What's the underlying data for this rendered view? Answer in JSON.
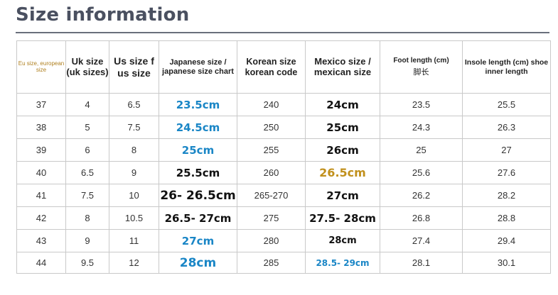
{
  "page": {
    "title": "Size information"
  },
  "table": {
    "headers": {
      "eu": "Eu size, european size",
      "uk": "Uk size (uk sizes)",
      "us": "Us size f us size",
      "jp": "Japanese size / japanese size chart",
      "kr": "Korean size korean code",
      "mx": "Mexico size / mexican size",
      "foot": "Foot length (cm)",
      "foot_cjk": "脚长",
      "insole": "Insole length (cm) shoe inner length"
    },
    "rows": [
      {
        "eu": "37",
        "uk": "4",
        "us": "6.5",
        "jp": "23.5cm",
        "kr": "240",
        "mx": "24cm",
        "foot": "23.5",
        "insole": "25.5"
      },
      {
        "eu": "38",
        "uk": "5",
        "us": "7.5",
        "jp": "24.5cm",
        "kr": "250",
        "mx": "25cm",
        "foot": "24.3",
        "insole": "26.3"
      },
      {
        "eu": "39",
        "uk": "6",
        "us": "8",
        "jp": "25cm",
        "kr": "255",
        "mx": "26cm",
        "foot": "25",
        "insole": "27"
      },
      {
        "eu": "40",
        "uk": "6.5",
        "us": "9",
        "jp": "25.5cm",
        "kr": "260",
        "mx": "26.5cm",
        "foot": "25.6",
        "insole": "27.6"
      },
      {
        "eu": "41",
        "uk": "7.5",
        "us": "10",
        "jp": "26- 26.5cm",
        "kr": "265-270",
        "mx": "27cm",
        "foot": "26.2",
        "insole": "28.2"
      },
      {
        "eu": "42",
        "uk": "8",
        "us": "10.5",
        "jp": "26.5- 27cm",
        "kr": "275",
        "mx": "27.5- 28cm",
        "foot": "26.8",
        "insole": "28.8"
      },
      {
        "eu": "43",
        "uk": "9",
        "us": "11",
        "jp": "27cm",
        "kr": "280",
        "mx": "28cm",
        "foot": "27.4",
        "insole": "29.4"
      },
      {
        "eu": "44",
        "uk": "9.5",
        "us": "12",
        "jp": "28cm",
        "kr": "285",
        "mx": "28.5- 29cm",
        "foot": "28.1",
        "insole": "30.1"
      }
    ]
  },
  "colors": {
    "title": "#4a5060",
    "blue": "#1a86c6",
    "gold": "#c1901c",
    "eu_header": "#b08020"
  }
}
